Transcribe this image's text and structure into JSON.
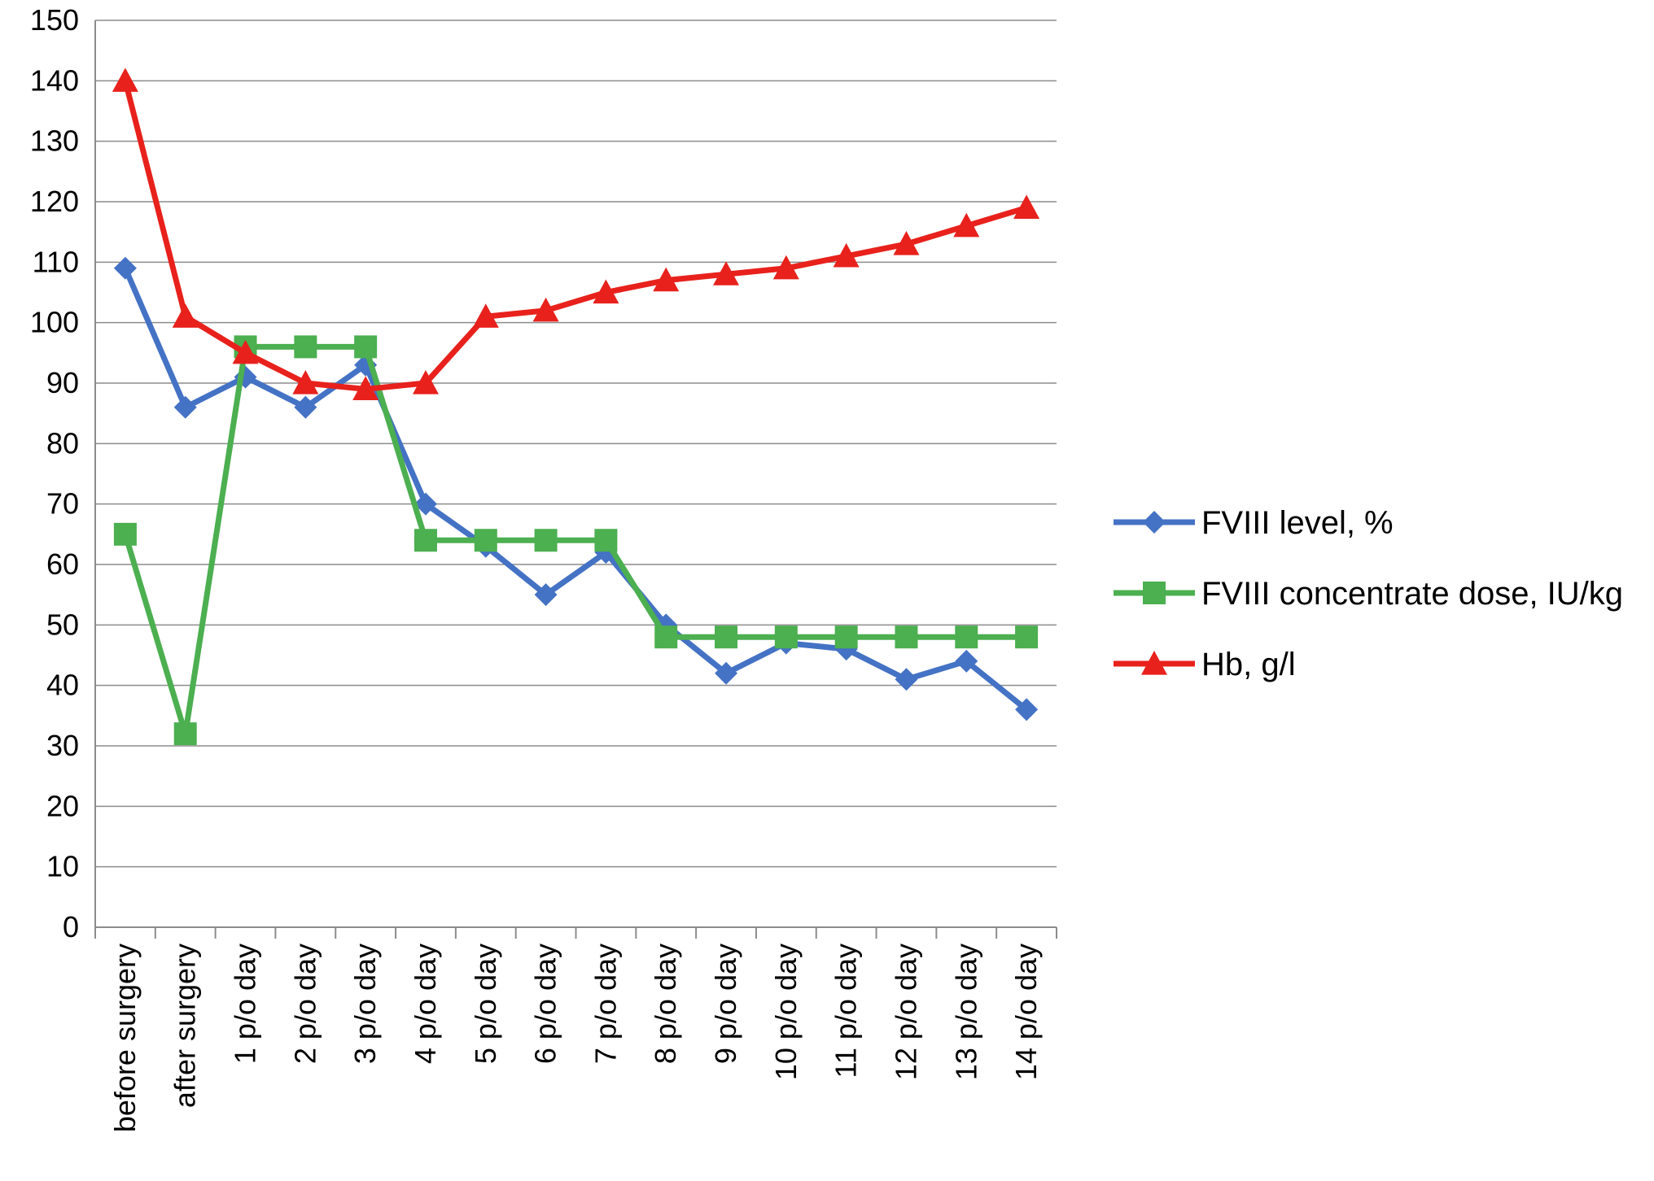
{
  "chart_data": {
    "type": "line",
    "title": "",
    "xlabel": "",
    "ylabel": "",
    "ylim": [
      0,
      150
    ],
    "ytick_step": 10,
    "grid": true,
    "legend_position": "right",
    "categories": [
      "before surgery",
      "after surgery",
      "1 p/o day",
      "2 p/o day",
      "3 p/o day",
      "4 p/o day",
      "5 p/o day",
      "6 p/o day",
      "7 p/o day",
      "8 p/o day",
      "9 p/o day",
      "10 p/o day",
      "11 p/o day",
      "12 p/o day",
      "13 p/o day",
      "14 p/o day"
    ],
    "series": [
      {
        "name": "FVIII level, %",
        "color": "#4472C4",
        "marker": "diamond",
        "values": [
          109,
          86,
          91,
          86,
          93,
          70,
          63,
          55,
          62,
          50,
          42,
          47,
          46,
          41,
          44,
          36
        ]
      },
      {
        "name": "FVIII concentrate dose, IU/kg",
        "color": "#4CAF50",
        "marker": "square",
        "values": [
          65,
          32,
          96,
          96,
          96,
          64,
          64,
          64,
          64,
          48,
          48,
          48,
          48,
          48,
          48,
          48
        ]
      },
      {
        "name": "Hb, g/l",
        "color": "#E8211C",
        "marker": "triangle",
        "values": [
          140,
          101,
          95,
          90,
          89,
          90,
          101,
          102,
          105,
          107,
          108,
          109,
          111,
          113,
          116,
          119
        ]
      }
    ]
  }
}
